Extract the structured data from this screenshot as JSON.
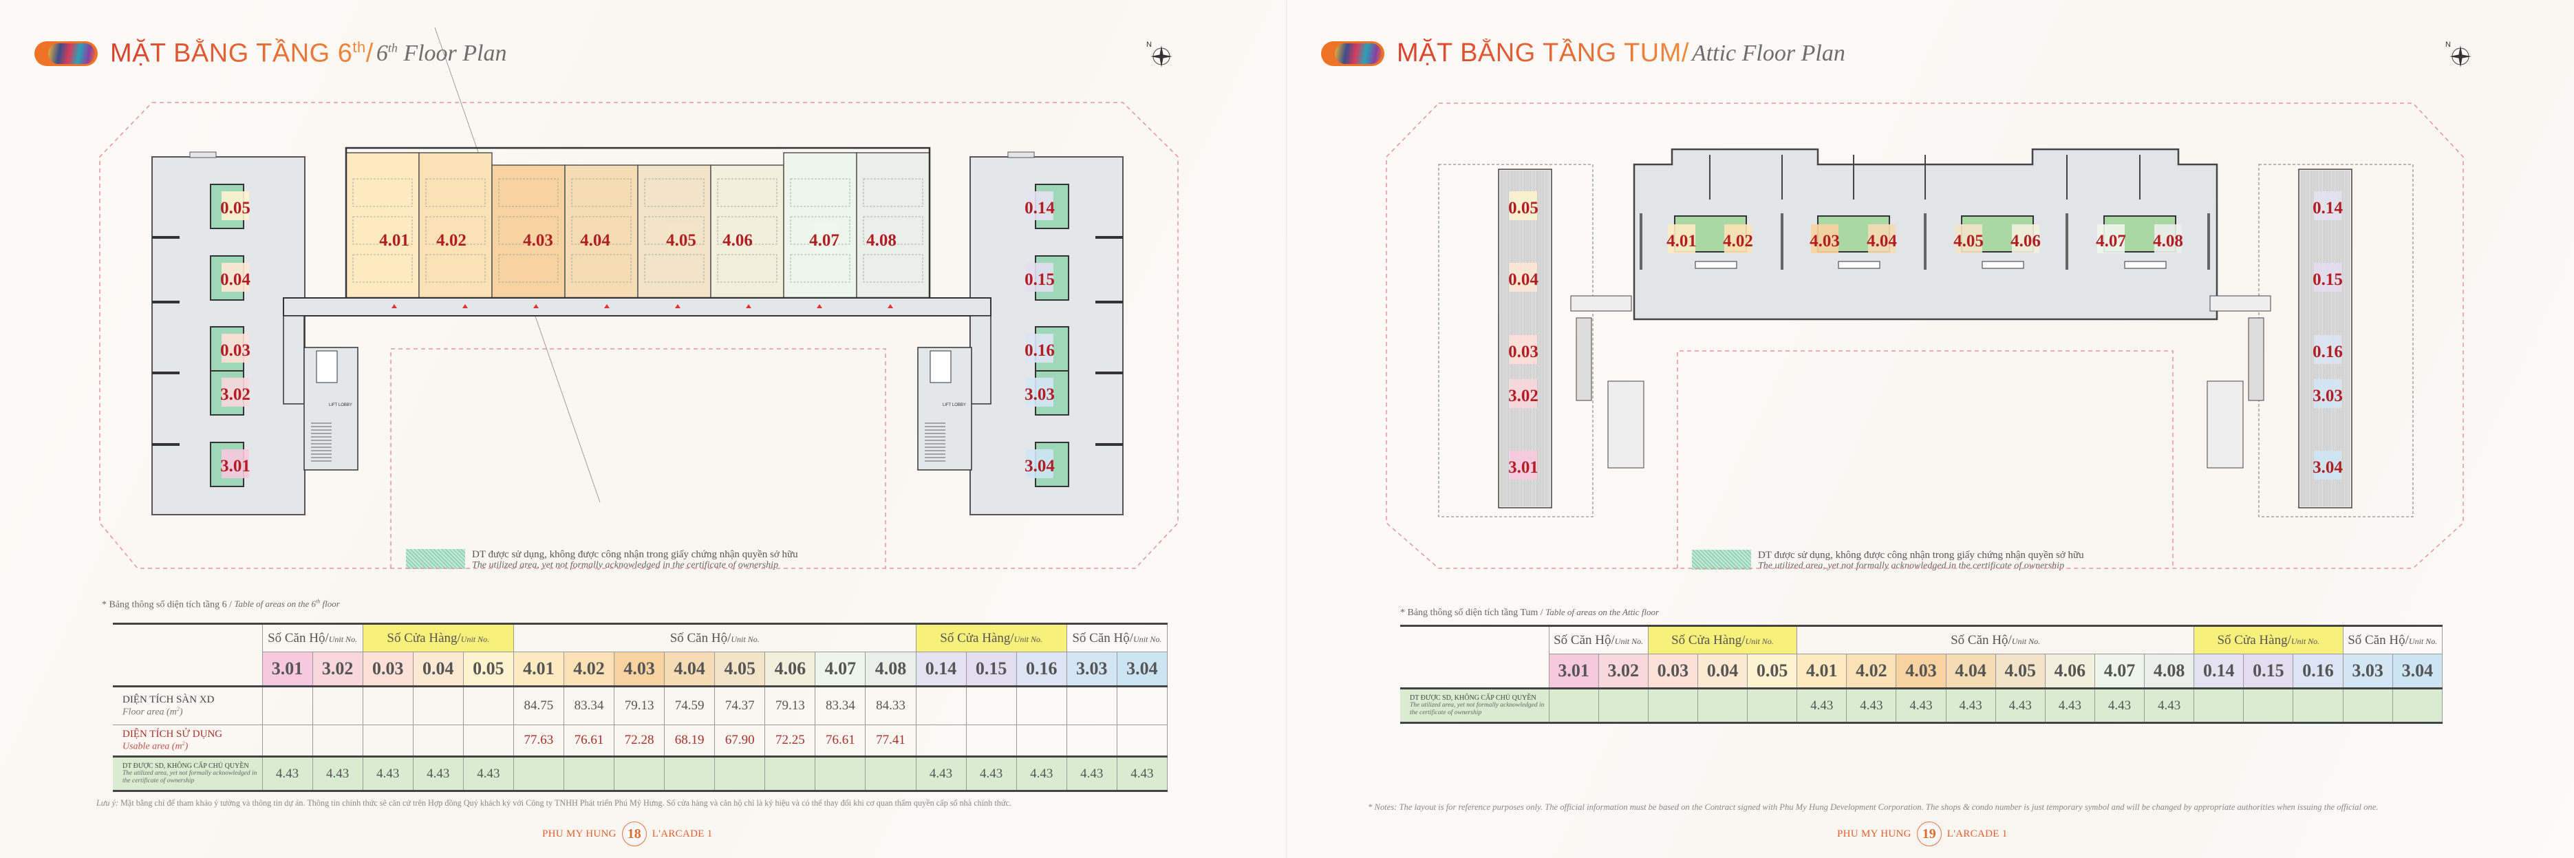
{
  "colors": {
    "accent": "#e0502d",
    "unit_label": "#b01e23",
    "shop_header": "#f7f07a",
    "utilized_area": "#d9ecd1"
  },
  "left_page": {
    "title": {
      "vi": "MẶT BẰNG TẦNG 6",
      "vi_sup": "th",
      "slash": "/ ",
      "en_num": "6",
      "en_sup": "th",
      "en": " Floor Plan"
    },
    "compass_label": "N",
    "plan_labels": {
      "left_wing": [
        "0.05",
        "0.04",
        "0.03",
        "3.02",
        "3.01"
      ],
      "right_wing": [
        "0.14",
        "0.15",
        "0.16",
        "3.03",
        "3.04"
      ],
      "center": [
        "4.01",
        "4.02",
        "4.03",
        "4.04",
        "4.05",
        "4.06",
        "4.07",
        "4.08"
      ],
      "lift_lobby": "LIFT LOBBY"
    },
    "legend": {
      "vi": "DT được sử dụng, không được công nhận trong giấy chứng nhận quyền sở hữu",
      "en": "The utilized area, yet not formally acknowledged in the certificate of ownership"
    },
    "table_note": {
      "vi": "* Bảng thông số diện tích tầng 6 / ",
      "en": "Table of areas on the 6",
      "en_sup": "th",
      "en_end": " floor"
    },
    "table": {
      "groups": [
        {
          "label": "Số Căn Hộ/",
          "unit": "Unit No.",
          "span": 2,
          "type": "apt"
        },
        {
          "label": "Số Cửa Hàng/",
          "unit": "Unit No.",
          "span": 3,
          "type": "shop"
        },
        {
          "label": "Số Căn Hộ/",
          "unit": "Unit No.",
          "span": 8,
          "type": "apt"
        },
        {
          "label": "Số Cửa Hàng/",
          "unit": "Unit No.",
          "span": 3,
          "type": "shop"
        },
        {
          "label": "Số Căn Hộ/",
          "unit": "Unit No.",
          "span": 2,
          "type": "apt"
        }
      ],
      "units": [
        "3.01",
        "3.02",
        "0.03",
        "0.04",
        "0.05",
        "4.01",
        "4.02",
        "4.03",
        "4.04",
        "4.05",
        "4.06",
        "4.07",
        "4.08",
        "0.14",
        "0.15",
        "0.16",
        "3.03",
        "3.04"
      ],
      "rows": [
        {
          "label": "DIỆN TÍCH SÀN XD",
          "sublabel": "Floor area (m",
          "sub_sup": "2",
          "sub_end": ")",
          "style": "normal",
          "values": [
            "",
            "",
            "",
            "",
            "",
            "84.75",
            "83.34",
            "79.13",
            "74.59",
            "74.37",
            "79.13",
            "83.34",
            "84.33",
            "",
            "",
            "",
            "",
            ""
          ]
        },
        {
          "label": "DIỆN TÍCH SỬ DỤNG",
          "sublabel": "Usable area (m",
          "sub_sup": "2",
          "sub_end": ")",
          "style": "red",
          "values": [
            "",
            "",
            "",
            "",
            "",
            "77.63",
            "76.61",
            "72.28",
            "68.19",
            "67.90",
            "72.25",
            "76.61",
            "77.41",
            "",
            "",
            "",
            "",
            ""
          ]
        },
        {
          "label": "DT ĐƯỢC SD, KHÔNG CẤP CHỦ QUYỀN",
          "sublabel": "The utilized area, yet not formally acknowledged in the certificate of ownership",
          "style": "green",
          "values": [
            "4.43",
            "4.43",
            "4.43",
            "4.43",
            "4.43",
            "",
            "",
            "",
            "",
            "",
            "",
            "",
            "",
            "4.43",
            "4.43",
            "4.43",
            "4.43",
            "4.43"
          ]
        }
      ]
    },
    "footnote": {
      "lead": "Lưu ý: ",
      "text": "Mặt bằng chỉ để tham khảo ý tưởng và thông tin dự án. Thông tin chính thức sẽ căn cứ trên Hợp đồng Quý khách ký với Công ty TNHH Phát triển Phú Mỹ Hưng. Số cửa hàng và căn hộ chỉ là ký hiệu và có thể thay đổi khi cơ quan thẩm quyền cấp sổ nhà chính thức."
    },
    "folio": {
      "left": "PHU MY HUNG",
      "page": "18",
      "right": "L'ARCADE 1"
    }
  },
  "right_page": {
    "title": {
      "vi": "MẶT BẰNG TẦNG TUM",
      "slash": "/ ",
      "en": "Attic Floor Plan"
    },
    "compass_label": "N",
    "plan_labels": {
      "left_wing": [
        "0.05",
        "0.04",
        "0.03",
        "3.02",
        "3.01"
      ],
      "right_wing": [
        "0.14",
        "0.15",
        "0.16",
        "3.03",
        "3.04"
      ],
      "center": [
        "4.01",
        "4.02",
        "4.03",
        "4.04",
        "4.05",
        "4.06",
        "4.07",
        "4.08"
      ]
    },
    "legend": {
      "vi": "DT được sử dụng, không được công nhận trong giấy chứng nhận quyền sở hữu",
      "en": "The utilized area, yet not formally acknowledged in the certificate of ownership"
    },
    "table_note": {
      "vi": "* Bảng thông số diện tích tầng Tum / ",
      "en": "Table of areas on the Attic floor"
    },
    "table": {
      "groups": [
        {
          "label": "Số Căn Hộ/",
          "unit": "Unit No.",
          "span": 2,
          "type": "apt"
        },
        {
          "label": "Số Cửa Hàng/",
          "unit": "Unit No.",
          "span": 3,
          "type": "shop"
        },
        {
          "label": "Số Căn Hộ/",
          "unit": "Unit No.",
          "span": 8,
          "type": "apt"
        },
        {
          "label": "Số Cửa Hàng/",
          "unit": "Unit No.",
          "span": 3,
          "type": "shop"
        },
        {
          "label": "Số Căn Hộ/",
          "unit": "Unit No.",
          "span": 2,
          "type": "apt"
        }
      ],
      "units": [
        "3.01",
        "3.02",
        "0.03",
        "0.04",
        "0.05",
        "4.01",
        "4.02",
        "4.03",
        "4.04",
        "4.05",
        "4.06",
        "4.07",
        "4.08",
        "0.14",
        "0.15",
        "0.16",
        "3.03",
        "3.04"
      ],
      "rows": [
        {
          "label": "DT ĐƯỢC SD, KHÔNG CẤP CHỦ QUYỀN",
          "sublabel": "The utilized area, yet not formally acknowledged in the certificate of ownership",
          "style": "green",
          "values": [
            "",
            "",
            "",
            "",
            "",
            "4.43",
            "4.43",
            "4.43",
            "4.43",
            "4.43",
            "4.43",
            "4.43",
            "4.43",
            "",
            "",
            "",
            "",
            ""
          ]
        }
      ]
    },
    "footnote": {
      "lead": "",
      "text": "* Notes: The layout is for reference purposes only. The official information must be based on the Contract signed with Phu My Hung Development Corporation. The shops & condo number is just temporary symbol and will be changed by appropriate authorities when issuing the official one."
    },
    "folio": {
      "left": "PHU MY HUNG",
      "page": "19",
      "right": "L'ARCADE 1"
    }
  },
  "unit_colors": {
    "3.01": "#f7c9de",
    "3.02": "#f8d7dd",
    "0.03": "#fde0d7",
    "0.04": "#fde8d4",
    "0.05": "#fdf3cf",
    "4.01": "#fdeac1",
    "4.02": "#fbe2b6",
    "4.03": "#f8d3a2",
    "4.04": "#f5dcb4",
    "4.05": "#f2e4c8",
    "4.06": "#f2efdc",
    "4.07": "#eef6ec",
    "4.08": "#eceeea",
    "0.14": "#e4e2f0",
    "0.15": "#e2def0",
    "0.16": "#dde4f3",
    "3.03": "#d4e6f4",
    "3.04": "#cde5f3"
  }
}
